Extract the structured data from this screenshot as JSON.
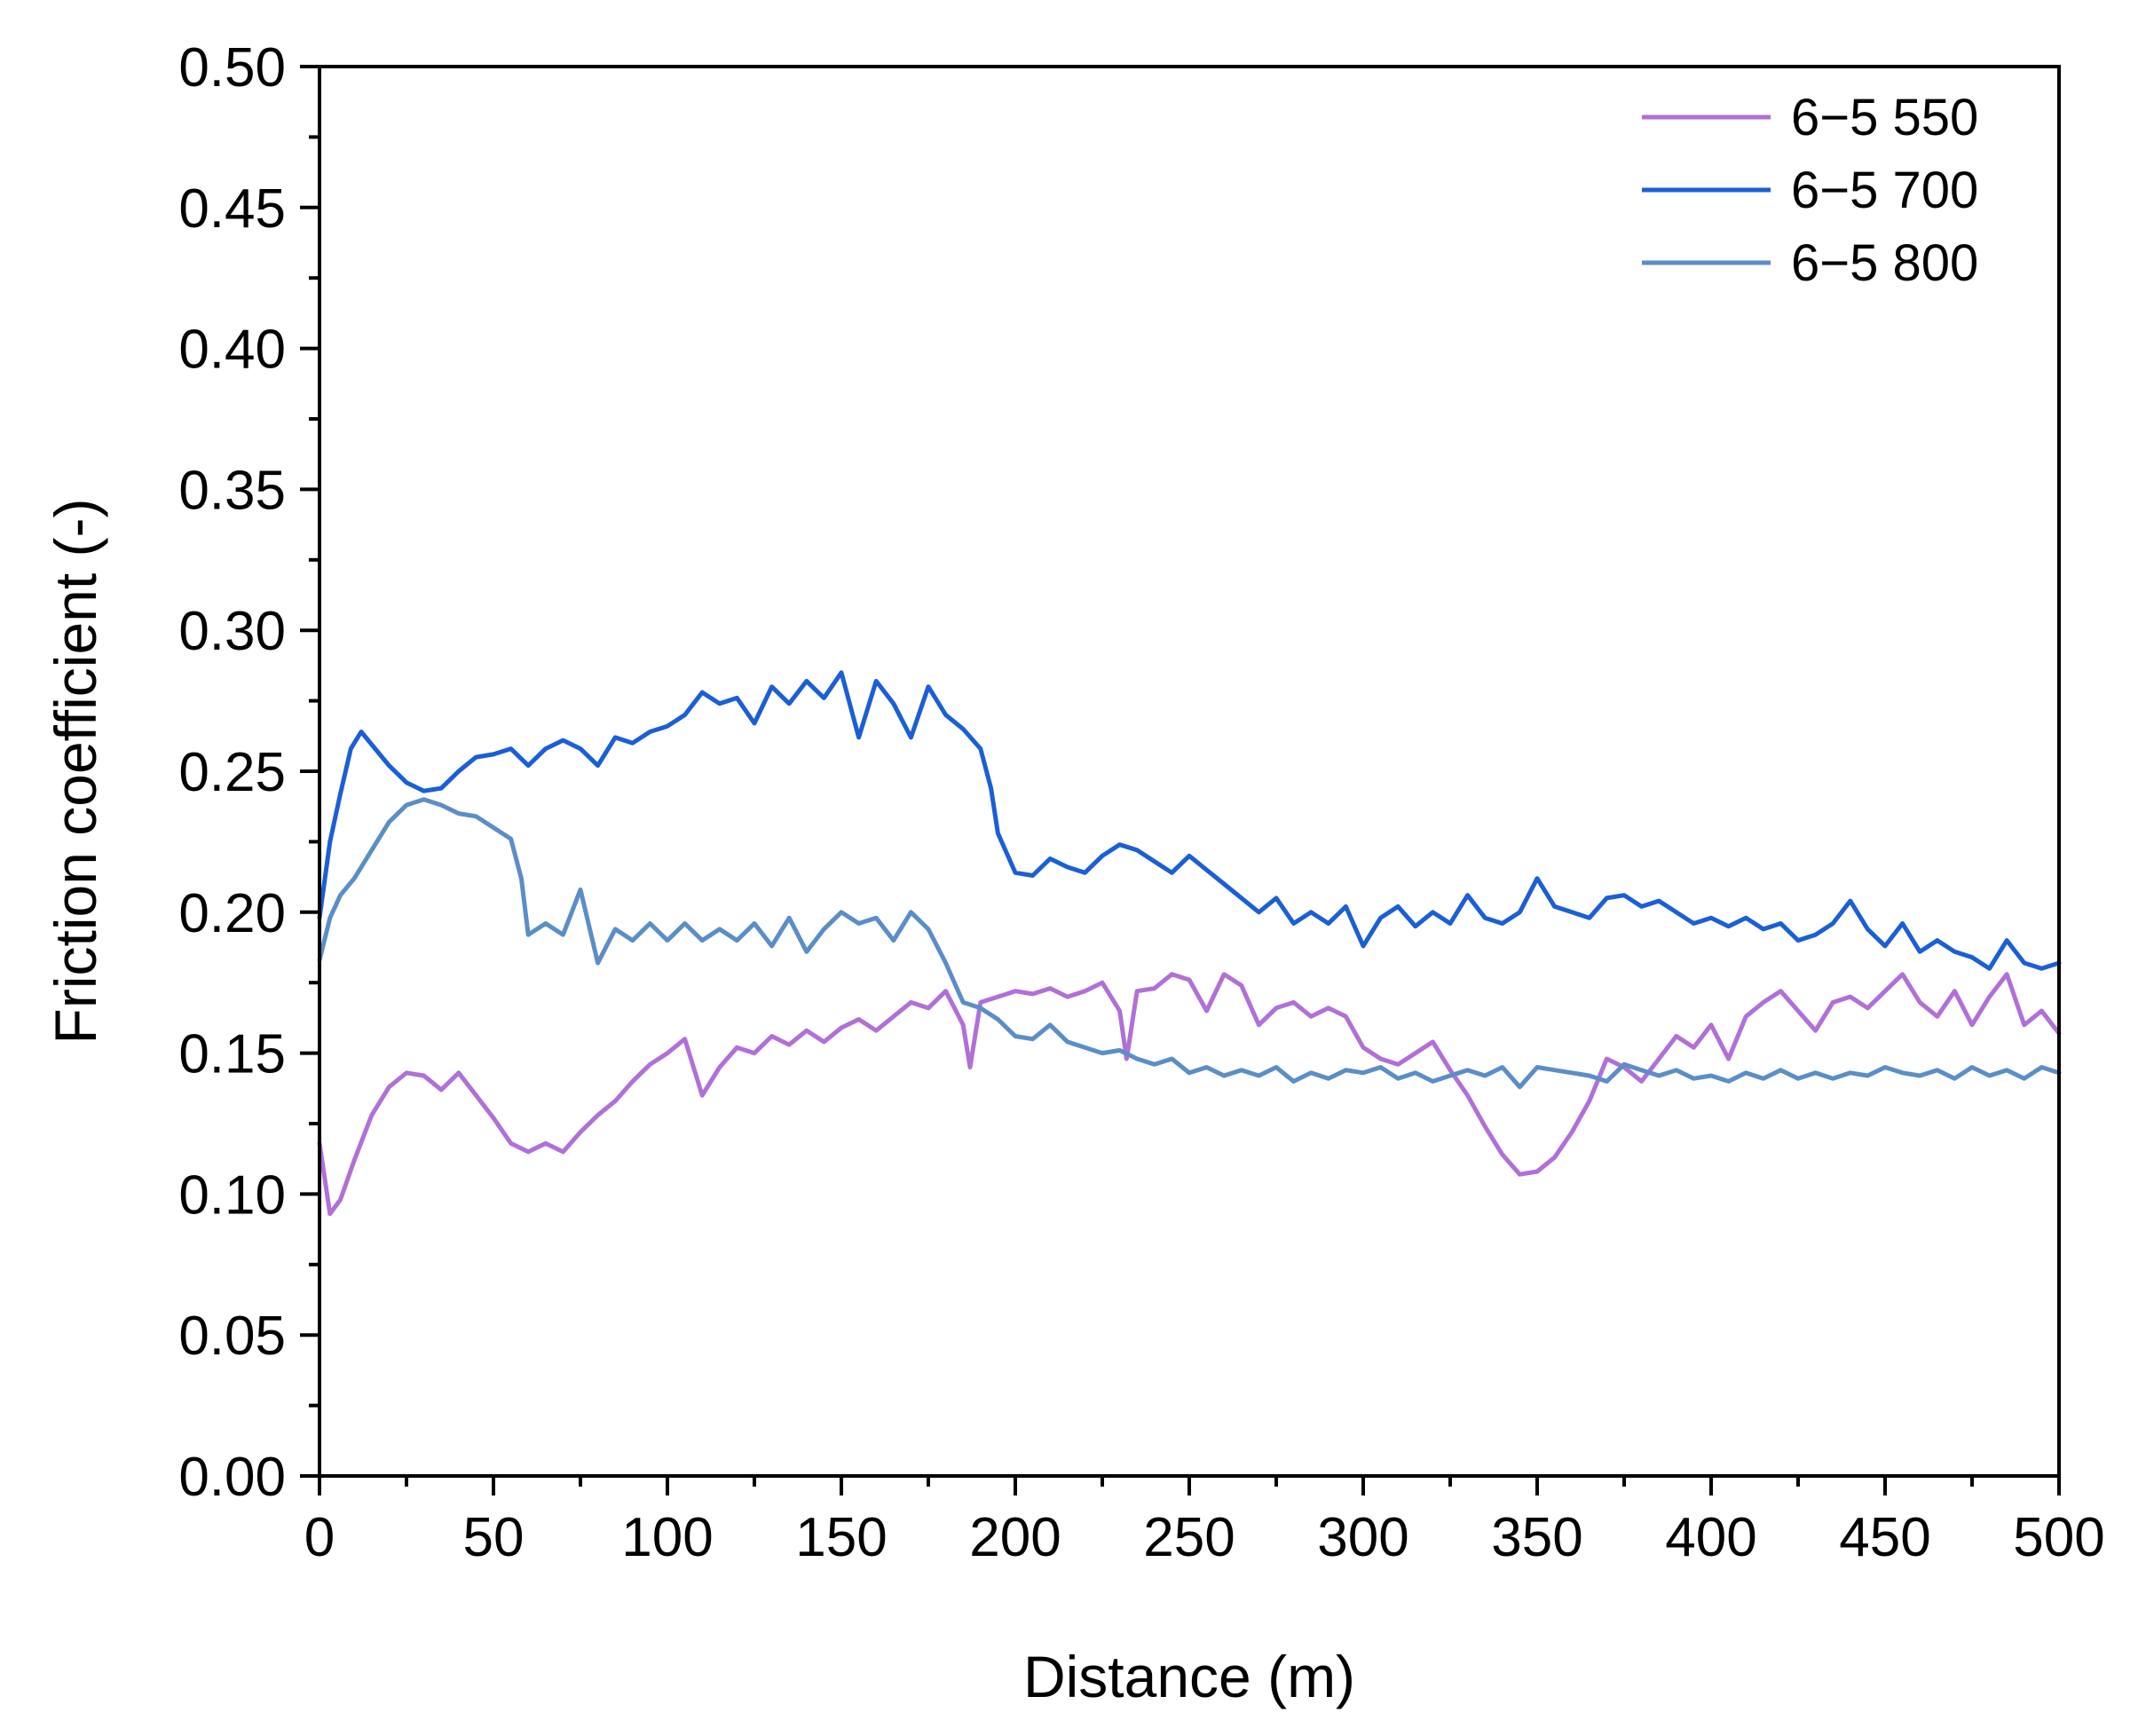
{
  "chart_data": {
    "type": "line",
    "title": "",
    "xlabel": "Distance (m)",
    "ylabel": "Friction coefficient (-)",
    "xlim": [
      0,
      500
    ],
    "ylim": [
      0,
      0.5
    ],
    "x_major_ticks": [
      0,
      50,
      100,
      150,
      200,
      250,
      300,
      350,
      400,
      450,
      500
    ],
    "x_tick_labels": [
      "0",
      "50",
      "100",
      "150",
      "200",
      "250",
      "300",
      "350",
      "400",
      "450",
      "500"
    ],
    "y_major_ticks": [
      0,
      0.05,
      0.1,
      0.15,
      0.2,
      0.25,
      0.3,
      0.35,
      0.4,
      0.45,
      0.5
    ],
    "y_tick_labels": [
      "0.00",
      "0.05",
      "0.10",
      "0.15",
      "0.20",
      "0.25",
      "0.30",
      "0.35",
      "0.40",
      "0.45",
      "0.50"
    ],
    "grid": false,
    "legend_position": "top-right",
    "series": [
      {
        "name": "6−5 550",
        "color": "#b070d8",
        "points": [
          [
            0,
            0.118
          ],
          [
            3,
            0.093
          ],
          [
            6,
            0.098
          ],
          [
            10,
            0.112
          ],
          [
            15,
            0.128
          ],
          [
            20,
            0.138
          ],
          [
            25,
            0.143
          ],
          [
            30,
            0.142
          ],
          [
            35,
            0.137
          ],
          [
            40,
            0.143
          ],
          [
            45,
            0.135
          ],
          [
            50,
            0.127
          ],
          [
            55,
            0.118
          ],
          [
            60,
            0.115
          ],
          [
            65,
            0.118
          ],
          [
            70,
            0.115
          ],
          [
            75,
            0.122
          ],
          [
            80,
            0.128
          ],
          [
            85,
            0.133
          ],
          [
            90,
            0.14
          ],
          [
            95,
            0.146
          ],
          [
            100,
            0.15
          ],
          [
            105,
            0.155
          ],
          [
            110,
            0.135
          ],
          [
            115,
            0.145
          ],
          [
            120,
            0.152
          ],
          [
            125,
            0.15
          ],
          [
            130,
            0.156
          ],
          [
            135,
            0.153
          ],
          [
            140,
            0.158
          ],
          [
            145,
            0.154
          ],
          [
            150,
            0.159
          ],
          [
            155,
            0.162
          ],
          [
            160,
            0.158
          ],
          [
            165,
            0.163
          ],
          [
            170,
            0.168
          ],
          [
            175,
            0.166
          ],
          [
            180,
            0.172
          ],
          [
            185,
            0.16
          ],
          [
            187,
            0.145
          ],
          [
            190,
            0.168
          ],
          [
            195,
            0.17
          ],
          [
            200,
            0.172
          ],
          [
            205,
            0.171
          ],
          [
            210,
            0.173
          ],
          [
            215,
            0.17
          ],
          [
            220,
            0.172
          ],
          [
            225,
            0.175
          ],
          [
            230,
            0.165
          ],
          [
            232,
            0.148
          ],
          [
            235,
            0.172
          ],
          [
            240,
            0.173
          ],
          [
            245,
            0.178
          ],
          [
            250,
            0.176
          ],
          [
            255,
            0.165
          ],
          [
            260,
            0.178
          ],
          [
            265,
            0.174
          ],
          [
            270,
            0.16
          ],
          [
            275,
            0.166
          ],
          [
            280,
            0.168
          ],
          [
            285,
            0.163
          ],
          [
            290,
            0.166
          ],
          [
            295,
            0.163
          ],
          [
            300,
            0.152
          ],
          [
            305,
            0.148
          ],
          [
            310,
            0.146
          ],
          [
            315,
            0.15
          ],
          [
            320,
            0.154
          ],
          [
            325,
            0.144
          ],
          [
            330,
            0.135
          ],
          [
            335,
            0.124
          ],
          [
            340,
            0.114
          ],
          [
            345,
            0.107
          ],
          [
            350,
            0.108
          ],
          [
            355,
            0.113
          ],
          [
            360,
            0.122
          ],
          [
            365,
            0.133
          ],
          [
            370,
            0.148
          ],
          [
            375,
            0.145
          ],
          [
            380,
            0.14
          ],
          [
            385,
            0.148
          ],
          [
            390,
            0.156
          ],
          [
            395,
            0.152
          ],
          [
            400,
            0.16
          ],
          [
            405,
            0.148
          ],
          [
            410,
            0.163
          ],
          [
            415,
            0.168
          ],
          [
            420,
            0.172
          ],
          [
            425,
            0.165
          ],
          [
            430,
            0.158
          ],
          [
            435,
            0.168
          ],
          [
            440,
            0.17
          ],
          [
            445,
            0.166
          ],
          [
            450,
            0.172
          ],
          [
            455,
            0.178
          ],
          [
            460,
            0.168
          ],
          [
            465,
            0.163
          ],
          [
            470,
            0.172
          ],
          [
            475,
            0.16
          ],
          [
            480,
            0.17
          ],
          [
            485,
            0.178
          ],
          [
            490,
            0.16
          ],
          [
            495,
            0.165
          ],
          [
            500,
            0.157
          ]
        ]
      },
      {
        "name": "6−5 700",
        "color": "#1a5fd6",
        "points": [
          [
            0,
            0.198
          ],
          [
            3,
            0.225
          ],
          [
            6,
            0.242
          ],
          [
            9,
            0.258
          ],
          [
            12,
            0.264
          ],
          [
            16,
            0.258
          ],
          [
            20,
            0.252
          ],
          [
            25,
            0.246
          ],
          [
            30,
            0.243
          ],
          [
            35,
            0.244
          ],
          [
            40,
            0.25
          ],
          [
            45,
            0.255
          ],
          [
            50,
            0.256
          ],
          [
            55,
            0.258
          ],
          [
            60,
            0.252
          ],
          [
            65,
            0.258
          ],
          [
            70,
            0.261
          ],
          [
            75,
            0.258
          ],
          [
            80,
            0.252
          ],
          [
            85,
            0.262
          ],
          [
            90,
            0.26
          ],
          [
            95,
            0.264
          ],
          [
            100,
            0.266
          ],
          [
            105,
            0.27
          ],
          [
            110,
            0.278
          ],
          [
            115,
            0.274
          ],
          [
            120,
            0.276
          ],
          [
            125,
            0.267
          ],
          [
            130,
            0.28
          ],
          [
            135,
            0.274
          ],
          [
            140,
            0.282
          ],
          [
            145,
            0.276
          ],
          [
            150,
            0.285
          ],
          [
            155,
            0.262
          ],
          [
            160,
            0.282
          ],
          [
            165,
            0.274
          ],
          [
            170,
            0.262
          ],
          [
            175,
            0.28
          ],
          [
            180,
            0.27
          ],
          [
            185,
            0.265
          ],
          [
            190,
            0.258
          ],
          [
            193,
            0.244
          ],
          [
            195,
            0.228
          ],
          [
            200,
            0.214
          ],
          [
            205,
            0.213
          ],
          [
            210,
            0.219
          ],
          [
            215,
            0.216
          ],
          [
            220,
            0.214
          ],
          [
            225,
            0.22
          ],
          [
            230,
            0.224
          ],
          [
            235,
            0.222
          ],
          [
            240,
            0.218
          ],
          [
            245,
            0.214
          ],
          [
            250,
            0.22
          ],
          [
            255,
            0.215
          ],
          [
            260,
            0.21
          ],
          [
            265,
            0.205
          ],
          [
            270,
            0.2
          ],
          [
            275,
            0.205
          ],
          [
            280,
            0.196
          ],
          [
            285,
            0.2
          ],
          [
            290,
            0.196
          ],
          [
            295,
            0.202
          ],
          [
            300,
            0.188
          ],
          [
            305,
            0.198
          ],
          [
            310,
            0.202
          ],
          [
            315,
            0.195
          ],
          [
            320,
            0.2
          ],
          [
            325,
            0.196
          ],
          [
            330,
            0.206
          ],
          [
            335,
            0.198
          ],
          [
            340,
            0.196
          ],
          [
            345,
            0.2
          ],
          [
            350,
            0.212
          ],
          [
            355,
            0.202
          ],
          [
            360,
            0.2
          ],
          [
            365,
            0.198
          ],
          [
            370,
            0.205
          ],
          [
            375,
            0.206
          ],
          [
            380,
            0.202
          ],
          [
            385,
            0.204
          ],
          [
            390,
            0.2
          ],
          [
            395,
            0.196
          ],
          [
            400,
            0.198
          ],
          [
            405,
            0.195
          ],
          [
            410,
            0.198
          ],
          [
            415,
            0.194
          ],
          [
            420,
            0.196
          ],
          [
            425,
            0.19
          ],
          [
            430,
            0.192
          ],
          [
            435,
            0.196
          ],
          [
            440,
            0.204
          ],
          [
            445,
            0.194
          ],
          [
            450,
            0.188
          ],
          [
            455,
            0.196
          ],
          [
            460,
            0.186
          ],
          [
            465,
            0.19
          ],
          [
            470,
            0.186
          ],
          [
            475,
            0.184
          ],
          [
            480,
            0.18
          ],
          [
            485,
            0.19
          ],
          [
            490,
            0.182
          ],
          [
            495,
            0.18
          ],
          [
            500,
            0.182
          ]
        ]
      },
      {
        "name": "6−5 800",
        "color": "#5b8ec8",
        "points": [
          [
            0,
            0.183
          ],
          [
            3,
            0.198
          ],
          [
            6,
            0.206
          ],
          [
            10,
            0.212
          ],
          [
            15,
            0.222
          ],
          [
            20,
            0.232
          ],
          [
            25,
            0.238
          ],
          [
            30,
            0.24
          ],
          [
            35,
            0.238
          ],
          [
            40,
            0.235
          ],
          [
            45,
            0.234
          ],
          [
            50,
            0.23
          ],
          [
            55,
            0.226
          ],
          [
            58,
            0.212
          ],
          [
            60,
            0.192
          ],
          [
            65,
            0.196
          ],
          [
            70,
            0.192
          ],
          [
            75,
            0.208
          ],
          [
            80,
            0.182
          ],
          [
            85,
            0.194
          ],
          [
            90,
            0.19
          ],
          [
            95,
            0.196
          ],
          [
            100,
            0.19
          ],
          [
            105,
            0.196
          ],
          [
            110,
            0.19
          ],
          [
            115,
            0.194
          ],
          [
            120,
            0.19
          ],
          [
            125,
            0.196
          ],
          [
            130,
            0.188
          ],
          [
            135,
            0.198
          ],
          [
            140,
            0.186
          ],
          [
            145,
            0.194
          ],
          [
            150,
            0.2
          ],
          [
            155,
            0.196
          ],
          [
            160,
            0.198
          ],
          [
            165,
            0.19
          ],
          [
            170,
            0.2
          ],
          [
            175,
            0.194
          ],
          [
            180,
            0.182
          ],
          [
            185,
            0.168
          ],
          [
            190,
            0.166
          ],
          [
            195,
            0.162
          ],
          [
            200,
            0.156
          ],
          [
            205,
            0.155
          ],
          [
            210,
            0.16
          ],
          [
            215,
            0.154
          ],
          [
            220,
            0.152
          ],
          [
            225,
            0.15
          ],
          [
            230,
            0.151
          ],
          [
            235,
            0.148
          ],
          [
            240,
            0.146
          ],
          [
            245,
            0.148
          ],
          [
            250,
            0.143
          ],
          [
            255,
            0.145
          ],
          [
            260,
            0.142
          ],
          [
            265,
            0.144
          ],
          [
            270,
            0.142
          ],
          [
            275,
            0.145
          ],
          [
            280,
            0.14
          ],
          [
            285,
            0.143
          ],
          [
            290,
            0.141
          ],
          [
            295,
            0.144
          ],
          [
            300,
            0.143
          ],
          [
            305,
            0.145
          ],
          [
            310,
            0.141
          ],
          [
            315,
            0.143
          ],
          [
            320,
            0.14
          ],
          [
            325,
            0.142
          ],
          [
            330,
            0.144
          ],
          [
            335,
            0.142
          ],
          [
            340,
            0.145
          ],
          [
            345,
            0.138
          ],
          [
            350,
            0.145
          ],
          [
            355,
            0.144
          ],
          [
            360,
            0.143
          ],
          [
            365,
            0.142
          ],
          [
            370,
            0.14
          ],
          [
            375,
            0.146
          ],
          [
            380,
            0.144
          ],
          [
            385,
            0.142
          ],
          [
            390,
            0.144
          ],
          [
            395,
            0.141
          ],
          [
            400,
            0.142
          ],
          [
            405,
            0.14
          ],
          [
            410,
            0.143
          ],
          [
            415,
            0.141
          ],
          [
            420,
            0.144
          ],
          [
            425,
            0.141
          ],
          [
            430,
            0.143
          ],
          [
            435,
            0.141
          ],
          [
            440,
            0.143
          ],
          [
            445,
            0.142
          ],
          [
            450,
            0.145
          ],
          [
            455,
            0.143
          ],
          [
            460,
            0.142
          ],
          [
            465,
            0.144
          ],
          [
            470,
            0.141
          ],
          [
            475,
            0.145
          ],
          [
            480,
            0.142
          ],
          [
            485,
            0.144
          ],
          [
            490,
            0.141
          ],
          [
            495,
            0.145
          ],
          [
            500,
            0.143
          ]
        ]
      }
    ]
  }
}
